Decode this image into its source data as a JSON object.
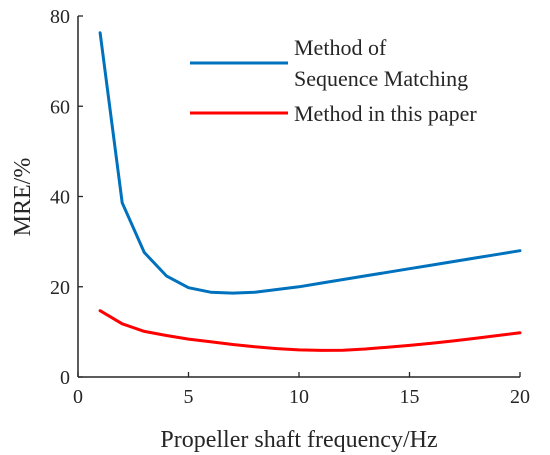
{
  "chart_data": {
    "type": "line",
    "title": "",
    "xlabel": "Propeller shaft frequency/Hz",
    "ylabel": "MRE/%",
    "xlim": [
      0,
      20
    ],
    "ylim": [
      0,
      80
    ],
    "xticks": [
      0,
      5,
      10,
      15,
      20
    ],
    "yticks": [
      0,
      20,
      40,
      60,
      80
    ],
    "grid": false,
    "legend_position": "top-right",
    "series": [
      {
        "name": "Method of Sequence Matching",
        "name_lines": [
          "Method of",
          "Sequence Matching"
        ],
        "color": "#0072BD",
        "x": [
          1,
          2,
          3,
          4,
          5,
          6,
          7,
          8,
          9,
          10,
          11,
          12,
          13,
          14,
          15,
          16,
          17,
          18,
          19,
          20
        ],
        "y": [
          76.3,
          38.6,
          27.6,
          22.4,
          19.8,
          18.8,
          18.6,
          18.8,
          19.4,
          20.0,
          20.8,
          21.6,
          22.4,
          23.2,
          24.0,
          24.8,
          25.6,
          26.4,
          27.2,
          28.0
        ]
      },
      {
        "name": "Method in this paper",
        "name_lines": [
          "Method in this paper"
        ],
        "color": "#FF0000",
        "x": [
          1,
          2,
          3,
          4,
          5,
          6,
          7,
          8,
          9,
          10,
          11,
          12,
          13,
          14,
          15,
          16,
          17,
          18,
          19,
          20
        ],
        "y": [
          14.7,
          11.8,
          10.1,
          9.2,
          8.4,
          7.8,
          7.2,
          6.7,
          6.3,
          6.0,
          5.9,
          5.95,
          6.2,
          6.6,
          7.0,
          7.5,
          8.0,
          8.6,
          9.2,
          9.8
        ]
      }
    ]
  }
}
